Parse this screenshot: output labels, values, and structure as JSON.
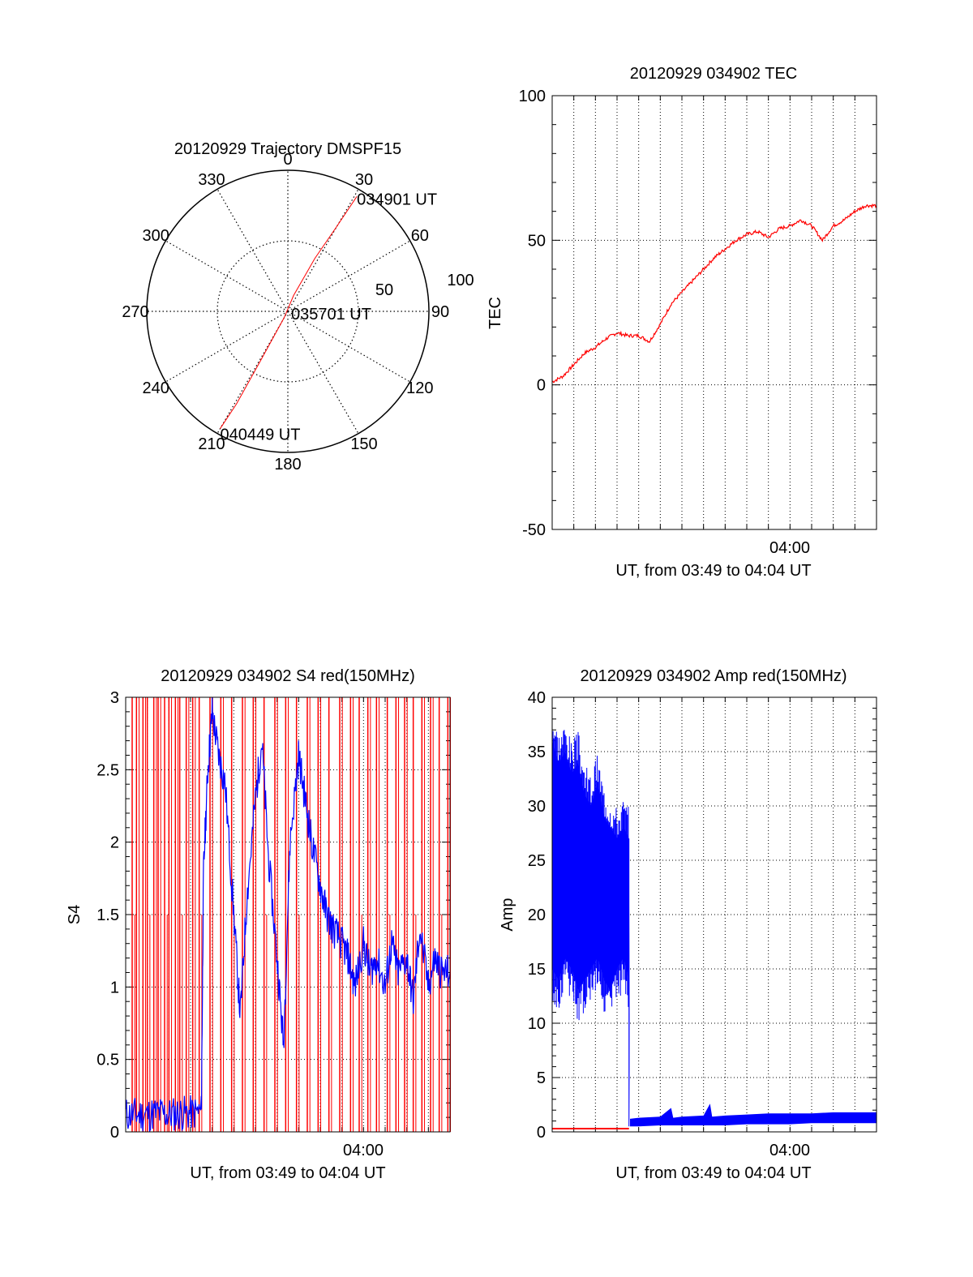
{
  "colors": {
    "red": "#ff0000",
    "blue": "#0000ff",
    "axis": "#000000",
    "grid": "#000000"
  },
  "chart_data": [
    {
      "id": "trajectory",
      "type": "polar",
      "title": "20120929 Trajectory DMSPF15",
      "angle_labels": [
        "0",
        "30",
        "60",
        "90",
        "120",
        "150",
        "180",
        "210",
        "240",
        "270",
        "300",
        "330"
      ],
      "radius_max": 100,
      "radius_labels": [
        "50",
        "100"
      ],
      "grid": true,
      "series": [
        {
          "color": "red",
          "points": [
            {
              "az": 31,
              "r": 95
            },
            {
              "az": 30,
              "r": 70
            },
            {
              "az": 27,
              "r": 42
            },
            {
              "az": 20,
              "r": 12
            },
            {
              "az": 210,
              "r": 5
            },
            {
              "az": 209,
              "r": 40
            },
            {
              "az": 209,
              "r": 75
            },
            {
              "az": 210,
              "r": 96
            }
          ]
        }
      ],
      "annotations": [
        {
          "text": "034901 UT",
          "az": 31,
          "r": 95
        },
        {
          "text": "035701 UT",
          "az": 0,
          "r": 0
        },
        {
          "text": "040449 UT",
          "az": 210,
          "r": 96
        }
      ]
    },
    {
      "id": "tec",
      "type": "line",
      "title": "20120929 034902 TEC",
      "xlabel": "UT, from 03:49 to 04:04 UT",
      "ylabel": "TEC",
      "xlim": [
        0,
        15
      ],
      "ylim": [
        -50,
        100
      ],
      "yticks": [
        -50,
        0,
        50,
        100
      ],
      "xtick_labels": [
        {
          "x": 11,
          "label": "04:00"
        }
      ],
      "grid": true,
      "series": [
        {
          "color": "red",
          "x": [
            0,
            0.5,
            1,
            1.5,
            2,
            2.5,
            3,
            3.5,
            4,
            4.5,
            5,
            5.5,
            6,
            6.5,
            7,
            7.5,
            8,
            8.5,
            9,
            9.5,
            10,
            10.5,
            11,
            11.5,
            12,
            12.5,
            13,
            13.5,
            14,
            14.5,
            15
          ],
          "y": [
            1,
            3,
            7,
            11,
            13,
            16,
            18,
            17,
            17,
            15,
            21,
            28,
            32,
            36,
            40,
            44,
            47,
            50,
            52,
            53,
            51,
            54,
            55,
            57,
            55,
            50,
            55,
            57,
            60,
            62,
            62
          ]
        }
      ]
    },
    {
      "id": "s4",
      "type": "line",
      "title": "20120929 034902 S4 red(150MHz)",
      "xlabel": "UT, from 03:49 to 04:04 UT",
      "ylabel": "S4",
      "xlim": [
        0,
        15
      ],
      "ylim": [
        0,
        3
      ],
      "yticks": [
        0,
        0.5,
        1,
        1.5,
        2,
        2.5,
        3
      ],
      "xtick_labels": [
        {
          "x": 11,
          "label": "04:00"
        }
      ],
      "grid": true,
      "series": [
        {
          "color": "blue",
          "x": [
            0,
            0.5,
            1,
            1.5,
            2,
            2.5,
            3,
            3.5,
            3.6,
            3.8,
            4,
            4.3,
            4.6,
            5,
            5.3,
            5.6,
            6,
            6.3,
            6.6,
            7,
            7.3,
            7.6,
            8,
            8.3,
            8.6,
            9,
            9.3,
            9.6,
            10,
            10.3,
            10.6,
            11,
            11.3,
            11.6,
            12,
            12.3,
            12.6,
            13,
            13.3,
            13.6,
            14,
            14.3,
            14.6,
            15
          ],
          "y": [
            0.12,
            0.12,
            0.12,
            0.13,
            0.12,
            0.13,
            0.13,
            0.14,
            1.8,
            2.5,
            2.9,
            2.6,
            2.4,
            1.5,
            0.8,
            1.6,
            2.3,
            2.7,
            1.9,
            1.2,
            0.6,
            2.0,
            2.6,
            2.3,
            2.0,
            1.7,
            1.5,
            1.4,
            1.3,
            1.2,
            1.0,
            1.3,
            1.1,
            1.2,
            1.0,
            1.3,
            1.1,
            1.2,
            0.9,
            1.4,
            1.0,
            1.2,
            1.1,
            1.1
          ]
        },
        {
          "color": "red",
          "spikes": true,
          "x": [
            0.3,
            0.5,
            0.8,
            1.0,
            1.3,
            1.5,
            1.8,
            2.0,
            2.3,
            2.5,
            2.8,
            3.1,
            3.4,
            3.9,
            4.4,
            4.9,
            5.4,
            5.9,
            6.4,
            6.9,
            7.4,
            7.9,
            8.4,
            8.9,
            9.4,
            9.9,
            10.4,
            10.8,
            11.2,
            11.6,
            12.1,
            12.5,
            12.9,
            13.3,
            13.7,
            14.1,
            14.5,
            14.9
          ],
          "y": [
            3,
            3,
            3,
            3,
            3,
            3,
            3,
            3,
            3,
            3,
            3,
            3,
            3,
            3,
            3,
            3,
            3,
            3,
            3,
            3,
            3,
            3,
            3,
            3,
            3,
            3,
            3,
            3,
            3,
            3,
            3,
            3,
            3,
            3,
            3,
            3,
            3,
            3
          ]
        }
      ]
    },
    {
      "id": "amp",
      "type": "line",
      "title": "20120929 034902 Amp red(150MHz)",
      "xlabel": "UT, from 03:49 to 04:04 UT",
      "ylabel": "Amp",
      "xlim": [
        0,
        15
      ],
      "ylim": [
        0,
        40
      ],
      "yticks": [
        0,
        5,
        10,
        15,
        20,
        25,
        30,
        35,
        40
      ],
      "xtick_labels": [
        {
          "x": 11,
          "label": "04:00"
        }
      ],
      "grid": true,
      "series": [
        {
          "color": "blue",
          "x": [
            0,
            0.3,
            0.6,
            0.9,
            1.2,
            1.5,
            1.8,
            2.1,
            2.4,
            2.7,
            3.0,
            3.3,
            3.55,
            3.6,
            4,
            5,
            5.5,
            5.6,
            6,
            7,
            7.3,
            7.4,
            8,
            9,
            10,
            11,
            12,
            13,
            14,
            15
          ],
          "y_min": [
            15,
            14,
            16,
            15,
            13,
            14,
            15,
            16,
            14,
            13,
            15,
            16,
            14,
            0.5,
            0.5,
            0.6,
            0.6,
            0.6,
            0.6,
            0.6,
            0.6,
            0.6,
            0.6,
            0.7,
            0.7,
            0.7,
            0.8,
            0.8,
            0.8,
            0.8
          ],
          "y_max": [
            36,
            34,
            35,
            33,
            34,
            31,
            30,
            32,
            29,
            28,
            27,
            28,
            27,
            1.2,
            1.3,
            1.4,
            2.2,
            1.3,
            1.4,
            1.5,
            2.6,
            1.4,
            1.5,
            1.6,
            1.7,
            1.7,
            1.7,
            1.8,
            1.8,
            1.8
          ]
        },
        {
          "color": "red",
          "x": [
            0,
            1,
            2,
            3,
            3.55
          ],
          "y": [
            0.3,
            0.3,
            0.3,
            0.3,
            0.3
          ]
        }
      ]
    }
  ]
}
